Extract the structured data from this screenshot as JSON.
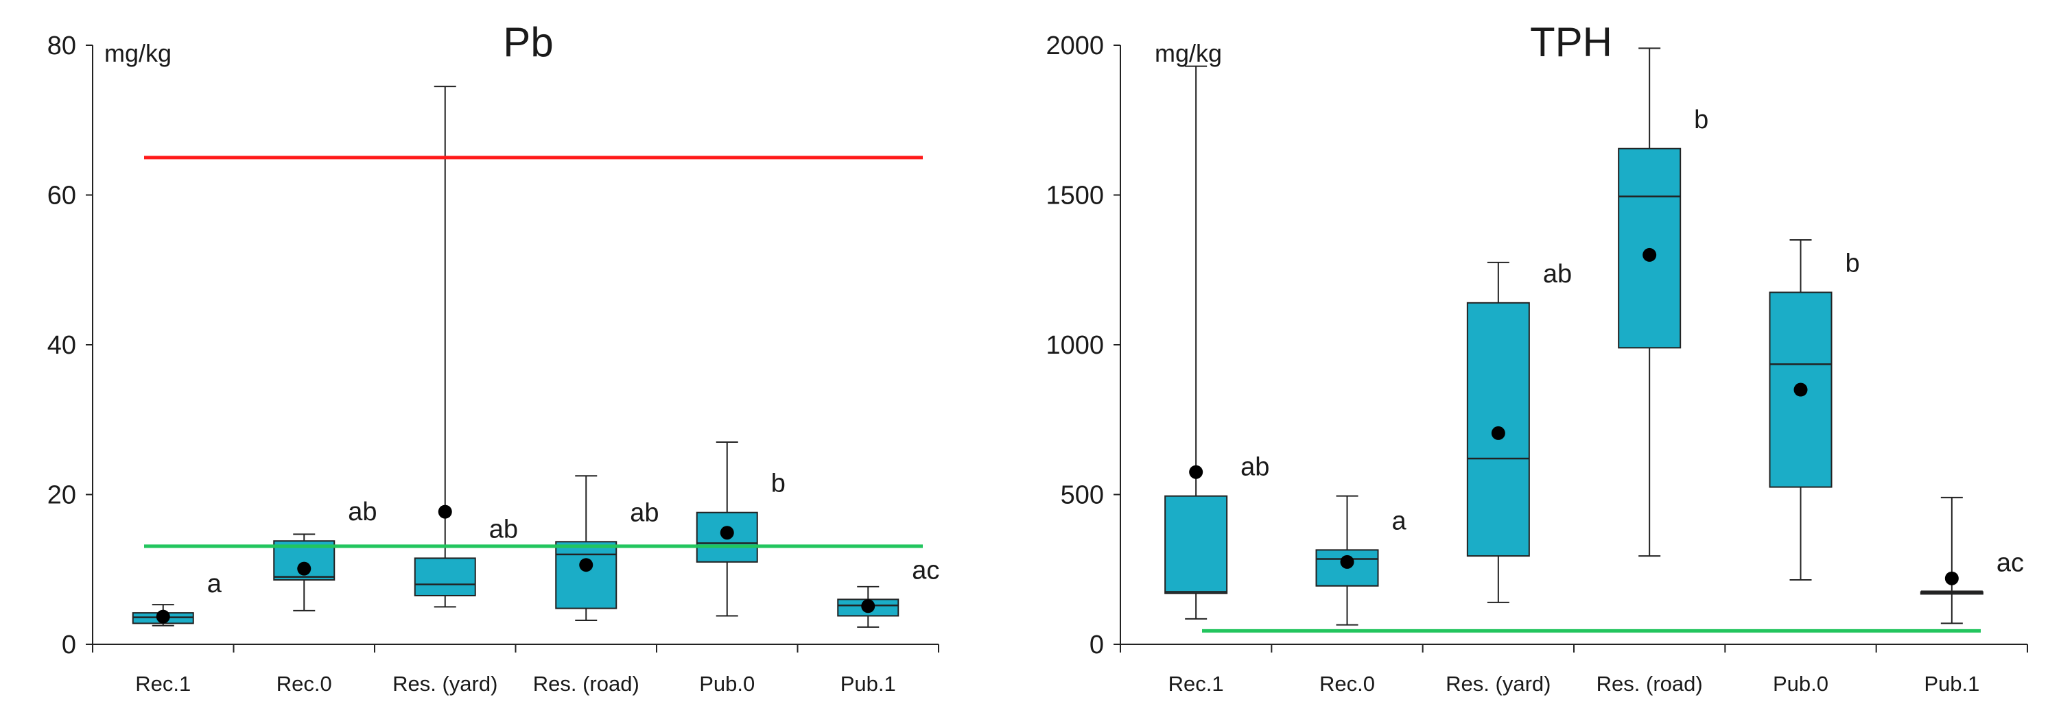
{
  "chart_data": [
    {
      "type": "box",
      "title": "Pb",
      "ylabel": "mg/kg",
      "ylim": [
        0,
        80
      ],
      "yticks": [
        "0",
        "20",
        "40",
        "60",
        "80"
      ],
      "categories": [
        "Rec.1",
        "Rec.0",
        "Res. (yard)",
        "Res. (road)",
        "Pub.0",
        "Pub.1"
      ],
      "boxes": [
        {
          "min": 2.5,
          "q1": 2.8,
          "median": 3.6,
          "q3": 4.2,
          "max": 5.3,
          "mean": 3.7,
          "label": "a"
        },
        {
          "min": 4.5,
          "q1": 8.6,
          "median": 9.0,
          "q3": 13.8,
          "max": 14.7,
          "mean": 10.1,
          "label": "ab"
        },
        {
          "min": 5.0,
          "q1": 6.5,
          "median": 8.0,
          "q3": 11.5,
          "max": 74.5,
          "mean": 17.7,
          "label": "ab"
        },
        {
          "min": 3.2,
          "q1": 4.8,
          "median": 12.0,
          "q3": 13.7,
          "max": 22.5,
          "mean": 10.6,
          "label": "ab"
        },
        {
          "min": 3.8,
          "q1": 11.0,
          "median": 13.5,
          "q3": 17.6,
          "max": 27.0,
          "mean": 14.9,
          "label": "b"
        },
        {
          "min": 2.3,
          "q1": 3.8,
          "median": 5.2,
          "q3": 6.0,
          "max": 7.7,
          "mean": 5.1,
          "label": "ac"
        }
      ],
      "reference_lines": [
        {
          "value": 65.0,
          "color": "#ff1a1a"
        },
        {
          "value": 13.1,
          "color": "#22c55e"
        }
      ]
    },
    {
      "type": "box",
      "title": "TPH",
      "ylabel": "mg/kg",
      "ylim": [
        0,
        2000
      ],
      "yticks": [
        "0",
        "500",
        "1000",
        "1500",
        "2000"
      ],
      "categories": [
        "Rec.1",
        "Rec.0",
        "Res. (yard)",
        "Res. (road)",
        "Pub.0",
        "Pub.1"
      ],
      "boxes": [
        {
          "min": 85,
          "q1": 170,
          "median": 175,
          "q3": 495,
          "max": 1930,
          "mean": 575,
          "label": "ab"
        },
        {
          "min": 65,
          "q1": 195,
          "median": 285,
          "q3": 315,
          "max": 495,
          "mean": 275,
          "label": "a"
        },
        {
          "min": 140,
          "q1": 295,
          "median": 620,
          "q3": 1140,
          "max": 1275,
          "mean": 705,
          "label": "ab"
        },
        {
          "min": 295,
          "q1": 990,
          "median": 1495,
          "q3": 1655,
          "max": 1990,
          "mean": 1300,
          "label": "b"
        },
        {
          "min": 215,
          "q1": 525,
          "median": 935,
          "q3": 1175,
          "max": 1350,
          "mean": 850,
          "label": "b"
        },
        {
          "min": 70,
          "q1": 175,
          "median": 175,
          "q3": 175,
          "max": 490,
          "mean": 220,
          "label": "ac"
        }
      ],
      "reference_lines": [
        {
          "value": 45,
          "color": "#22c55e"
        }
      ]
    }
  ],
  "colors": {
    "box_fill": "#1badc7",
    "box_stroke": "#222222",
    "mean_dot": "#000000",
    "axis": "#222222"
  }
}
